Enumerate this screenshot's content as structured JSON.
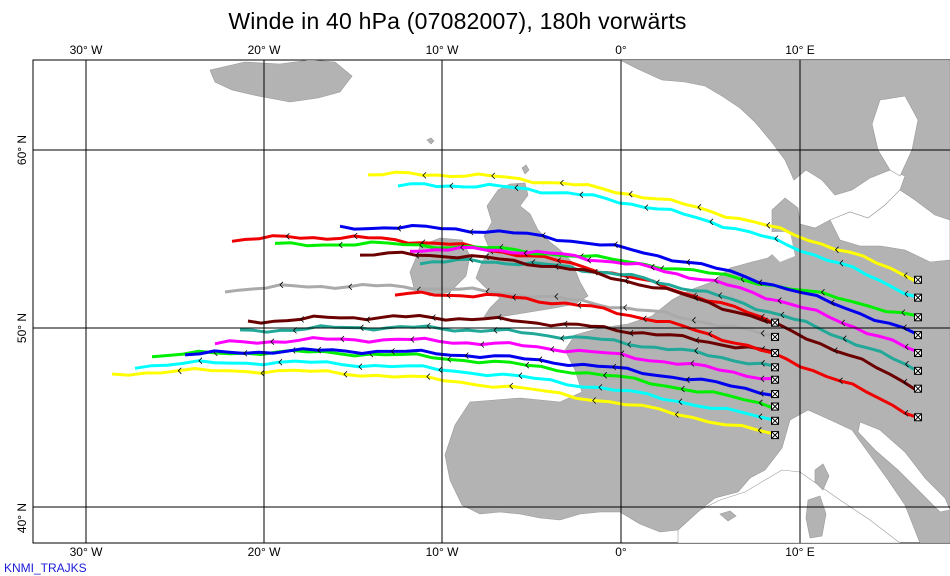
{
  "title": "Winde in 40 hPa (07082007), 180h vorwärts",
  "footer": "KNMI_TRAJKS",
  "axes": {
    "lon_labels": [
      "30° W",
      "20° W",
      "10° W",
      "0°",
      "10° E"
    ],
    "lat_labels": [
      "60° N",
      "50° N",
      "40° N"
    ]
  },
  "colors": {
    "land": "#b3b3b3",
    "sea": "#ffffff",
    "grid": "#000000"
  },
  "trajectories": [
    {
      "color": "#ffff00",
      "end_lat": 44.0
    },
    {
      "color": "#00ffff",
      "end_lat": 44.8
    },
    {
      "color": "#00ee00",
      "end_lat": 45.6
    },
    {
      "color": "#0000ee",
      "end_lat": 46.3
    },
    {
      "color": "#ff00ff",
      "end_lat": 47.1
    },
    {
      "color": "#22a898",
      "end_lat": 47.8
    },
    {
      "color": "#6b0000",
      "end_lat": 48.6
    },
    {
      "color": "#aaaaaa",
      "end_lat": 49.5
    },
    {
      "color": "#ee0000",
      "end_lat": 50.3
    },
    {
      "color": "#ffff00",
      "end_lat": 52.7
    },
    {
      "color": "#00ffff",
      "end_lat": 51.7
    },
    {
      "color": "#00ee00",
      "end_lat": 50.6
    },
    {
      "color": "#0000ee",
      "end_lat": 49.6
    },
    {
      "color": "#ff00ff",
      "end_lat": 48.6
    },
    {
      "color": "#22a898",
      "end_lat": 47.6
    },
    {
      "color": "#6b0000",
      "end_lat": 46.6
    },
    {
      "color": "#ee0000",
      "end_lat": 45.0
    }
  ]
}
